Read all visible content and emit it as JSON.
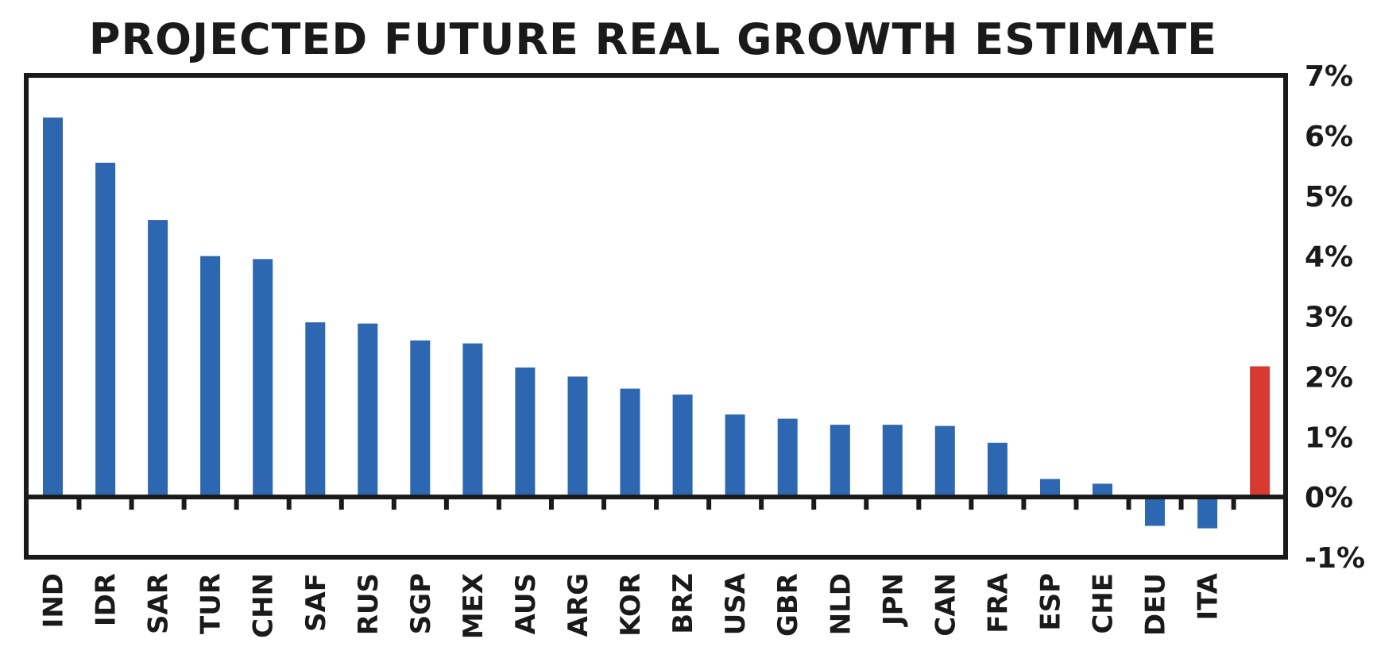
{
  "chart_data": {
    "type": "bar",
    "title": "PROJECTED FUTURE REAL GROWTH ESTIMATE",
    "xlabel": "",
    "ylabel": "",
    "ylim": [
      -1,
      7
    ],
    "y_axis_side": "right",
    "y_tick_values": [
      7,
      6,
      5,
      4,
      3,
      2,
      1,
      0,
      -1
    ],
    "y_tick_labels": [
      "7%",
      "6%",
      "5%",
      "4%",
      "3%",
      "2%",
      "1%",
      "0%",
      "-1%"
    ],
    "grid": false,
    "legend": "none",
    "categories": [
      "IND",
      "IDR",
      "SAR",
      "TUR",
      "CHN",
      "SAF",
      "RUS",
      "SGP",
      "MEX",
      "AUS",
      "ARG",
      "KOR",
      "BRZ",
      "USA",
      "GBR",
      "NLD",
      "JPN",
      "CAN",
      "FRA",
      "ESP",
      "CHE",
      "DEU",
      "ITA",
      ""
    ],
    "values": [
      6.3,
      5.55,
      4.6,
      4.0,
      3.95,
      2.9,
      2.88,
      2.6,
      2.55,
      2.15,
      2.0,
      1.8,
      1.7,
      1.37,
      1.3,
      1.2,
      1.2,
      1.18,
      0.9,
      0.3,
      0.22,
      -0.48,
      -0.52,
      2.17
    ],
    "colors": {
      "bar": "#2e67b1",
      "highlight": "#d63a31",
      "axis": "#1a1a1a",
      "text": "#1a1a1a"
    },
    "highlight_index": 23
  }
}
